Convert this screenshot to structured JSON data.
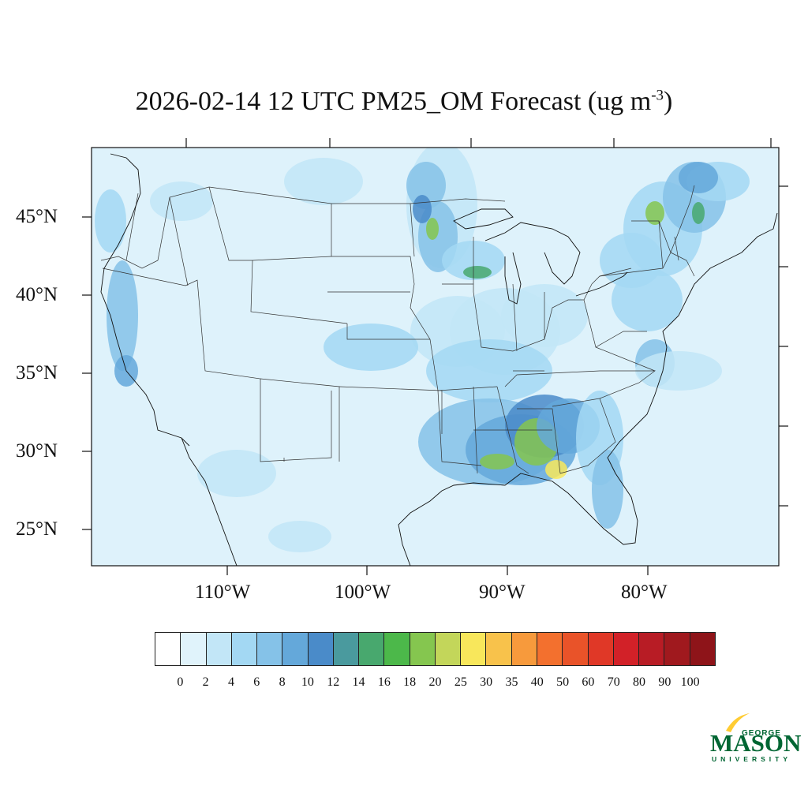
{
  "title": {
    "main": "2026-02-14 12 UTC PM25_OM Forecast (ug m",
    "superscript": "-3",
    "close": ")"
  },
  "latitude_labels": [
    "45°N",
    "40°N",
    "35°N",
    "30°N",
    "25°N"
  ],
  "longitude_labels": [
    "110°W",
    "100°W",
    "90°W",
    "80°W"
  ],
  "colorbar": {
    "labels": [
      "0",
      "2",
      "4",
      "6",
      "8",
      "10",
      "12",
      "14",
      "16",
      "18",
      "20",
      "25",
      "30",
      "35",
      "40",
      "50",
      "60",
      "70",
      "80",
      "90",
      "100"
    ],
    "colors": [
      "#ffffff",
      "#e0f3fb",
      "#c2e6f7",
      "#a3d8f3",
      "#85c2e8",
      "#64a8da",
      "#4a8bc9",
      "#4a9a9e",
      "#48a86e",
      "#4cb84a",
      "#85c64f",
      "#c3d65a",
      "#f8e75b",
      "#f8c24b",
      "#f79a3c",
      "#f3702e",
      "#e95329",
      "#e03827",
      "#d22128",
      "#b81c25",
      "#a0191e",
      "#8e1419"
    ]
  },
  "map": {
    "background_color": "#def2fb",
    "emission_colors": [
      "#c2e6f7",
      "#a3d8f3",
      "#85c2e8",
      "#64a8da",
      "#4a8bc9",
      "#48a86e",
      "#85c64f",
      "#c3d65a",
      "#f8e75b"
    ]
  },
  "logo": {
    "george": "GEORGE",
    "mason": "MASON",
    "university": "UNIVERSITY",
    "brand_green": "#006633",
    "brand_gold": "#ffcc33"
  }
}
